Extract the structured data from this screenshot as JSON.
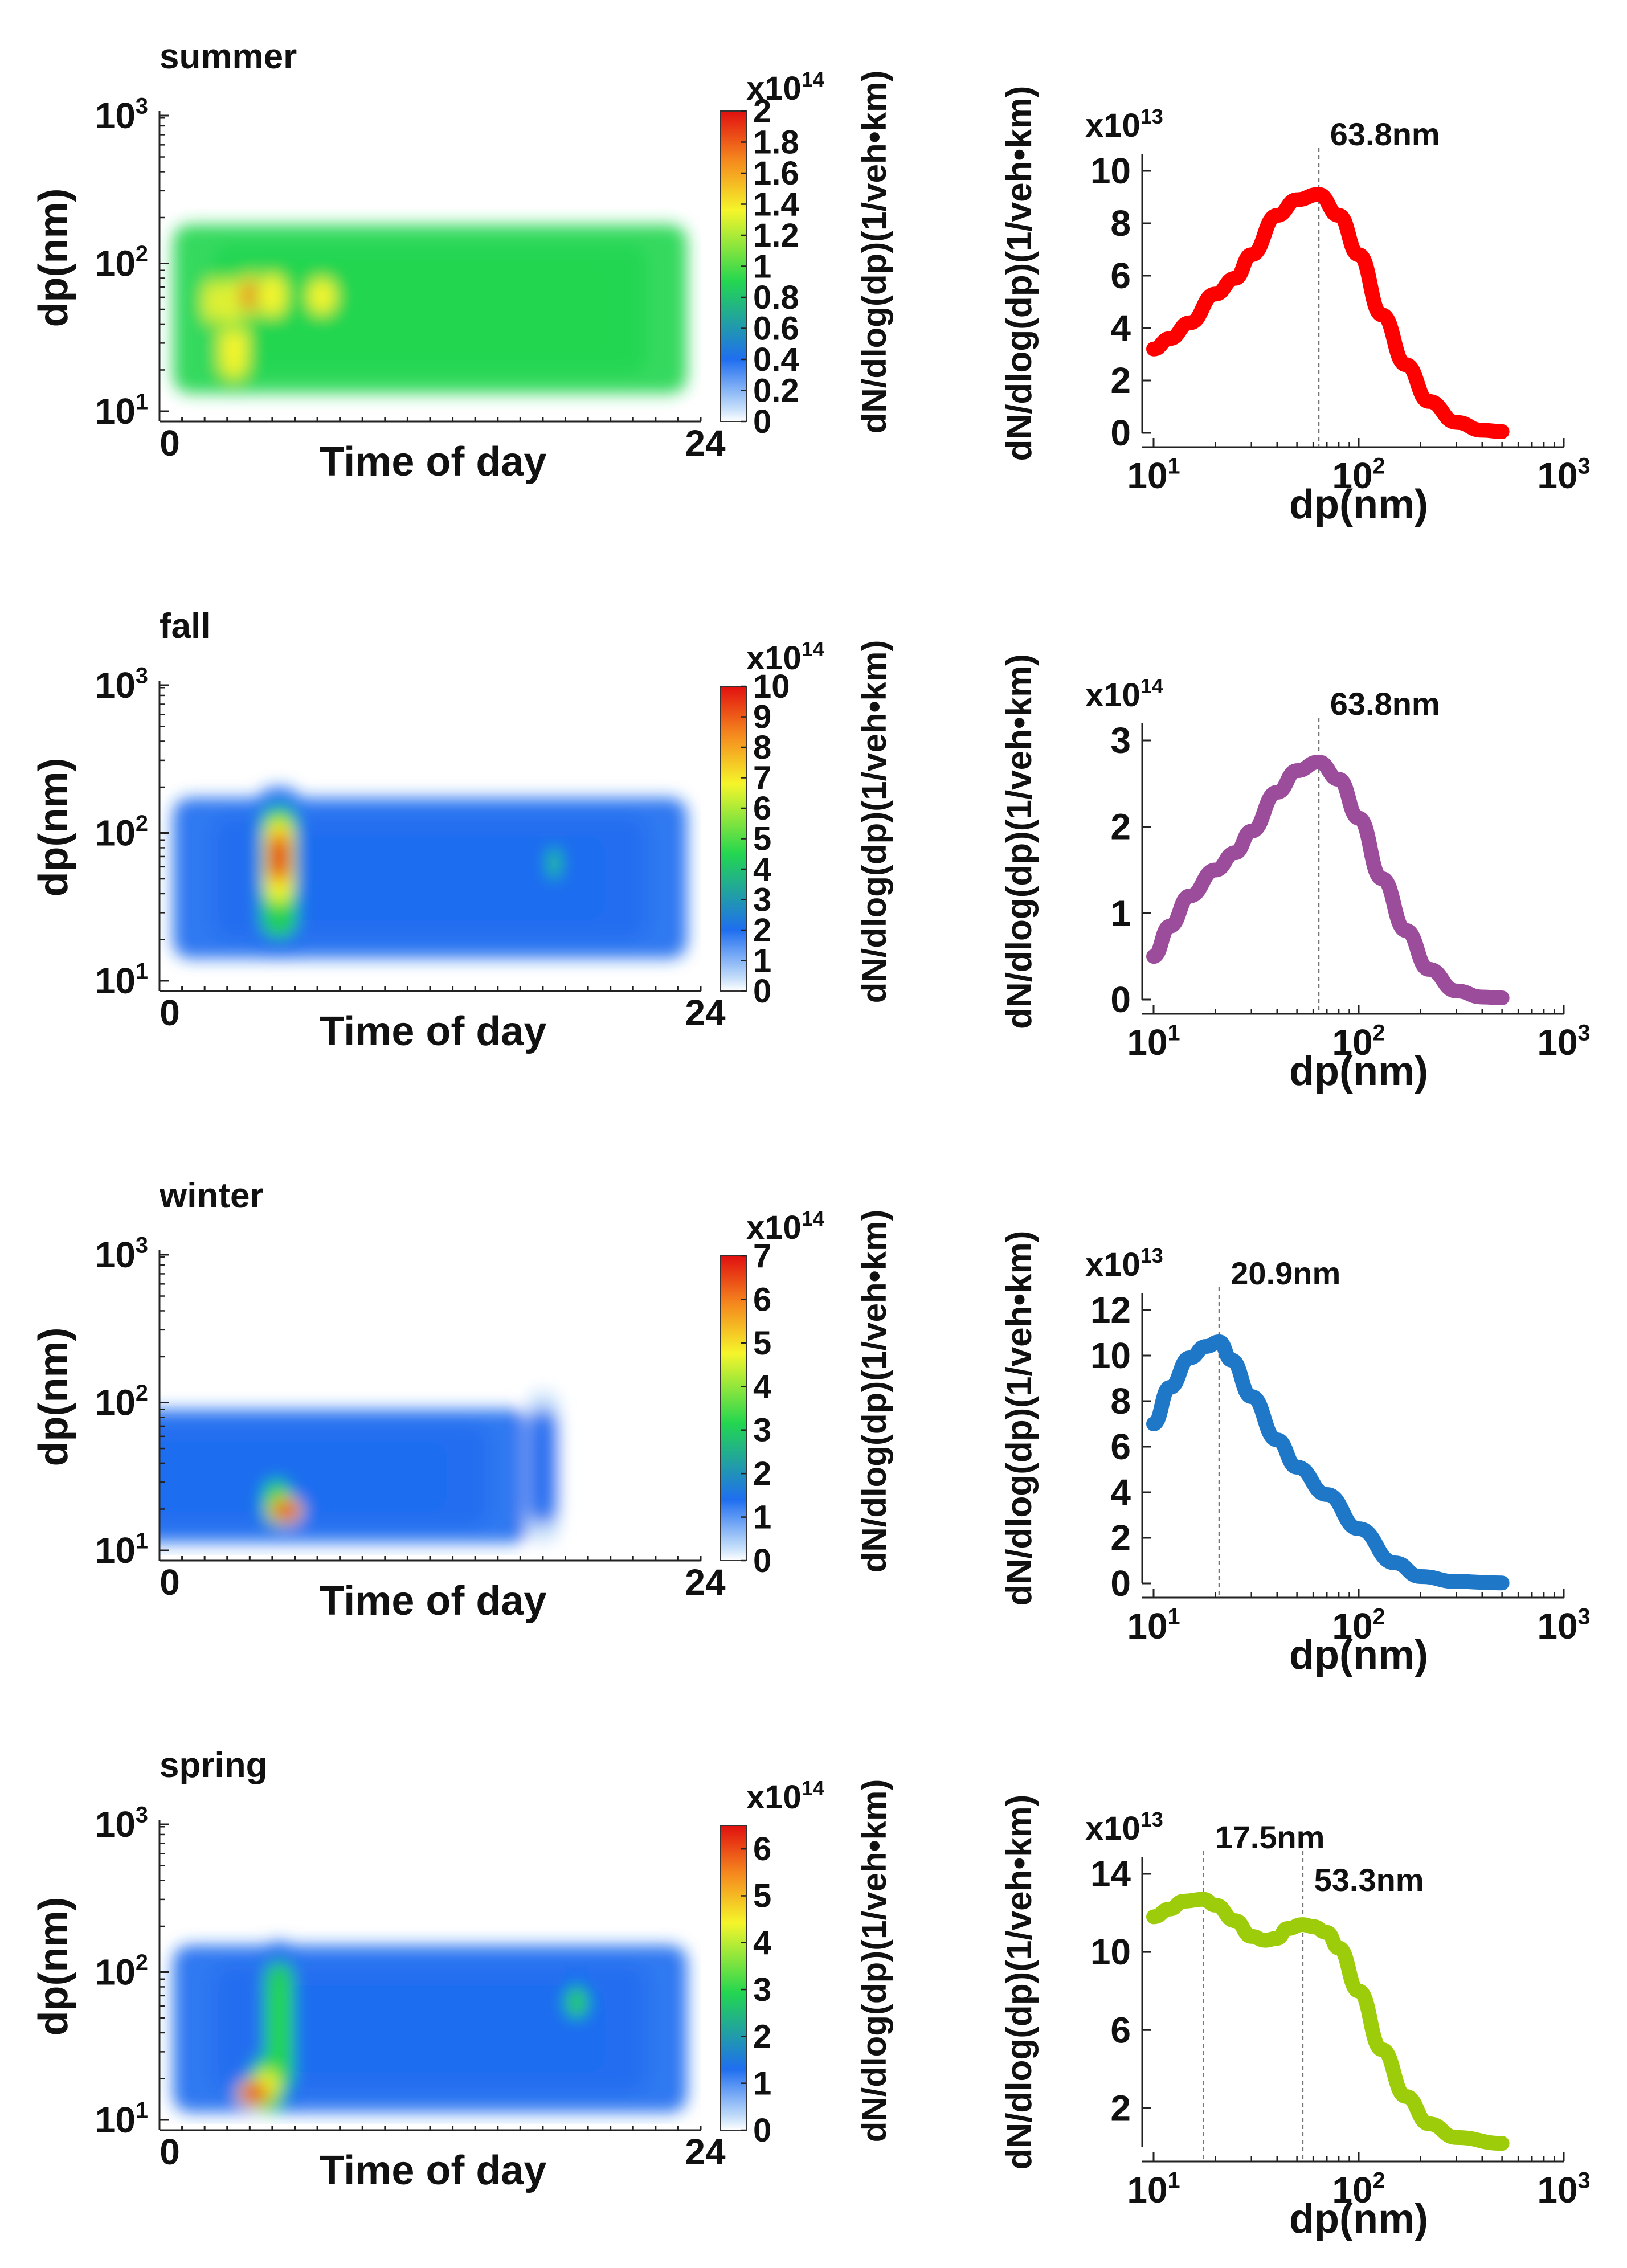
{
  "chart_data": [
    {
      "type": "heatmap",
      "title": "summer",
      "xlabel": "Time of day",
      "ylabel": "dp(nm)",
      "x_ticks": [
        "0",
        "24"
      ],
      "xlim": [
        0,
        24
      ],
      "ylim": [
        10,
        1000
      ],
      "y_ticks": [
        {
          "base": "10",
          "exp": "1"
        },
        {
          "base": "10",
          "exp": "2"
        },
        {
          "base": "10",
          "exp": "3"
        }
      ],
      "colorbar": {
        "label": "dN/dlog(dp)(1/veh•km)",
        "multiplier_base": "x10",
        "multiplier_exp": "14",
        "range": [
          0,
          2
        ],
        "ticks": [
          "0",
          "0.2",
          "0.4",
          "0.6",
          "0.8",
          "1",
          "1.2",
          "1.4",
          "1.6",
          "1.8",
          "2"
        ]
      },
      "color_stops": [
        "#ffffff",
        "#c8e0fa",
        "#1f6ef0",
        "#23d650",
        "#f5f52a",
        "#f58a1e",
        "#e11010"
      ],
      "blobs": [
        {
          "t": 12,
          "d0": 14,
          "d1": 180,
          "v": 0.75
        },
        {
          "t": 2.6,
          "d0": 35,
          "d1": 90,
          "v": 1.25
        },
        {
          "t": 3.3,
          "d0": 14,
          "d1": 80,
          "v": 1.25
        },
        {
          "t": 3.3,
          "d0": 35,
          "d1": 90,
          "v": 1.2
        },
        {
          "t": 4.1,
          "d0": 40,
          "d1": 95,
          "v": 1.55
        },
        {
          "t": 5.0,
          "d0": 40,
          "d1": 95,
          "v": 1.25
        },
        {
          "t": 7.2,
          "d0": 42,
          "d1": 88,
          "v": 1.3
        }
      ]
    },
    {
      "type": "line",
      "title": "",
      "color": "#ff0000",
      "xlabel": "dp(nm)",
      "ylabel": "dN/dlog(dp)(1/veh•km)",
      "multiplier_base": "x10",
      "multiplier_exp": "13",
      "xlim": [
        10,
        1000
      ],
      "ylim": [
        0,
        10
      ],
      "y_ticks": [
        "0",
        "2",
        "4",
        "6",
        "8",
        "10"
      ],
      "x_ticks": [
        {
          "base": "10",
          "exp": "1"
        },
        {
          "base": "10",
          "exp": "2"
        },
        {
          "base": "10",
          "exp": "3"
        }
      ],
      "x": [
        10,
        12,
        15,
        20,
        25,
        30,
        40,
        50,
        63.8,
        80,
        100,
        130,
        170,
        220,
        300,
        400,
        500
      ],
      "y": [
        3.2,
        3.6,
        4.2,
        5.3,
        5.9,
        6.8,
        8.3,
        8.9,
        9.1,
        8.3,
        6.8,
        4.5,
        2.6,
        1.2,
        0.4,
        0.1,
        0.05
      ],
      "peaks": [
        {
          "x": 63.8,
          "label": "63.8nm"
        }
      ]
    },
    {
      "type": "heatmap",
      "title": "fall",
      "xlabel": "Time of day",
      "ylabel": "dp(nm)",
      "x_ticks": [
        "0",
        "24"
      ],
      "xlim": [
        0,
        24
      ],
      "ylim": [
        10,
        1000
      ],
      "y_ticks": [
        {
          "base": "10",
          "exp": "1"
        },
        {
          "base": "10",
          "exp": "2"
        },
        {
          "base": "10",
          "exp": "3"
        }
      ],
      "colorbar": {
        "label": "dN/dlog(dp)(1/veh•km)",
        "multiplier_base": "x10",
        "multiplier_exp": "14",
        "range": [
          0,
          10
        ],
        "ticks": [
          "0",
          "1",
          "2",
          "3",
          "4",
          "5",
          "6",
          "7",
          "8",
          "9",
          "10"
        ]
      },
      "color_stops": [
        "#ffffff",
        "#c8e0fa",
        "#1f6ef0",
        "#23d650",
        "#f5f52a",
        "#f58a1e",
        "#e11010"
      ],
      "blobs": [
        {
          "t": 12,
          "d0": 15,
          "d1": 170,
          "v": 1.7
        },
        {
          "t": 5.3,
          "d0": 15,
          "d1": 200,
          "v": 3.0
        },
        {
          "t": 5.3,
          "d0": 28,
          "d1": 150,
          "v": 6.0
        },
        {
          "t": 5.3,
          "d0": 40,
          "d1": 120,
          "v": 9.0
        },
        {
          "t": 17.5,
          "d0": 40,
          "d1": 100,
          "v": 2.4
        }
      ]
    },
    {
      "type": "line",
      "title": "",
      "color": "#9b4c9b",
      "xlabel": "dp(nm)",
      "ylabel": "dN/dlog(dp)(1/veh•km)",
      "multiplier_base": "x10",
      "multiplier_exp": "14",
      "xlim": [
        10,
        1000
      ],
      "ylim": [
        0,
        3
      ],
      "y_ticks": [
        "0",
        "1",
        "2",
        "3"
      ],
      "x_ticks": [
        {
          "base": "10",
          "exp": "1"
        },
        {
          "base": "10",
          "exp": "2"
        },
        {
          "base": "10",
          "exp": "3"
        }
      ],
      "x": [
        10,
        12,
        15,
        20,
        25,
        30,
        40,
        50,
        63.8,
        80,
        100,
        130,
        170,
        220,
        300,
        400,
        500
      ],
      "y": [
        0.5,
        0.85,
        1.2,
        1.5,
        1.7,
        1.95,
        2.4,
        2.65,
        2.75,
        2.55,
        2.1,
        1.4,
        0.8,
        0.35,
        0.1,
        0.03,
        0.02
      ],
      "peaks": [
        {
          "x": 63.8,
          "label": "63.8nm"
        }
      ]
    },
    {
      "type": "heatmap",
      "title": "winter",
      "xlabel": "Time of day",
      "ylabel": "dp(nm)",
      "x_ticks": [
        "0",
        "24"
      ],
      "xlim": [
        0,
        24
      ],
      "ylim": [
        10,
        1000
      ],
      "y_ticks": [
        {
          "base": "10",
          "exp": "1"
        },
        {
          "base": "10",
          "exp": "2"
        },
        {
          "base": "10",
          "exp": "3"
        }
      ],
      "colorbar": {
        "label": "dN/dlog(dp)(1/veh•km)",
        "multiplier_base": "x10",
        "multiplier_exp": "14",
        "range": [
          0,
          7
        ],
        "ticks": [
          "0",
          "1",
          "2",
          "3",
          "4",
          "5",
          "6",
          "7"
        ]
      },
      "color_stops": [
        "#ffffff",
        "#c8e0fa",
        "#1f6ef0",
        "#23d650",
        "#f5f52a",
        "#f58a1e",
        "#e11010"
      ],
      "blobs": [
        {
          "t": 5,
          "d0": 12,
          "d1": 90,
          "v": 1.2
        },
        {
          "t": 17,
          "d0": 12,
          "d1": 120,
          "v": 0.45
        },
        {
          "t": 5.2,
          "d0": 14,
          "d1": 35,
          "v": 2.5
        },
        {
          "t": 5.6,
          "d0": 16,
          "d1": 24,
          "v": 6.2
        }
      ]
    },
    {
      "type": "line",
      "title": "",
      "color": "#1f77c8",
      "xlabel": "dp(nm)",
      "ylabel": "dN/dlog(dp)(1/veh•km)",
      "multiplier_base": "x10",
      "multiplier_exp": "13",
      "xlim": [
        10,
        1000
      ],
      "ylim": [
        0,
        12
      ],
      "y_ticks": [
        "0",
        "2",
        "4",
        "6",
        "8",
        "10",
        "12"
      ],
      "x_ticks": [
        {
          "base": "10",
          "exp": "1"
        },
        {
          "base": "10",
          "exp": "2"
        },
        {
          "base": "10",
          "exp": "3"
        }
      ],
      "x": [
        10,
        12,
        15,
        18,
        20.9,
        24,
        30,
        40,
        50,
        70,
        100,
        150,
        200,
        300,
        500
      ],
      "y": [
        7,
        8.6,
        9.9,
        10.4,
        10.6,
        9.8,
        8.2,
        6.3,
        5.1,
        3.9,
        2.4,
        0.9,
        0.3,
        0.08,
        0.02
      ],
      "peaks": [
        {
          "x": 20.9,
          "label": "20.9nm"
        }
      ]
    },
    {
      "type": "heatmap",
      "title": "spring",
      "xlabel": "Time of day",
      "ylabel": "dp(nm)",
      "x_ticks": [
        "0",
        "24"
      ],
      "xlim": [
        0,
        24
      ],
      "ylim": [
        10,
        1000
      ],
      "y_ticks": [
        {
          "base": "10",
          "exp": "1"
        },
        {
          "base": "10",
          "exp": "2"
        },
        {
          "base": "10",
          "exp": "3"
        }
      ],
      "colorbar": {
        "label": "dN/dlog(dp)(1/veh•km)",
        "multiplier_base": "x10",
        "multiplier_exp": "14",
        "range": [
          0,
          6.5
        ],
        "ticks": [
          "0",
          "1",
          "2",
          "3",
          "4",
          "5",
          "6"
        ]
      },
      "color_stops": [
        "#ffffff",
        "#c8e0fa",
        "#1f6ef0",
        "#23d650",
        "#f5f52a",
        "#f58a1e",
        "#e11010"
      ],
      "blobs": [
        {
          "t": 12,
          "d0": 12,
          "d1": 150,
          "v": 0.95
        },
        {
          "t": 5.3,
          "d0": 12,
          "d1": 160,
          "v": 2.3
        },
        {
          "t": 4.8,
          "d0": 12,
          "d1": 28,
          "v": 3.5
        },
        {
          "t": 4.2,
          "d0": 13,
          "d1": 20,
          "v": 6.0
        },
        {
          "t": 18.5,
          "d0": 40,
          "d1": 100,
          "v": 1.6
        }
      ]
    },
    {
      "type": "line",
      "title": "",
      "color": "#9ccc0a",
      "xlabel": "dp(nm)",
      "ylabel": "dN/dlog(dp)(1/veh•km)",
      "multiplier_base": "x10",
      "multiplier_exp": "13",
      "xlim": [
        10,
        1000
      ],
      "ylim": [
        0,
        14
      ],
      "y_ticks": [
        "2",
        "6",
        "10",
        "14"
      ],
      "x_ticks": [
        {
          "base": "10",
          "exp": "1"
        },
        {
          "base": "10",
          "exp": "2"
        },
        {
          "base": "10",
          "exp": "3"
        }
      ],
      "x": [
        10,
        12,
        14,
        17.5,
        20,
        25,
        30,
        35,
        40,
        45,
        53.3,
        60,
        70,
        80,
        100,
        130,
        170,
        220,
        300,
        500
      ],
      "y": [
        11.8,
        12.2,
        12.6,
        12.7,
        12.4,
        11.6,
        10.8,
        10.6,
        10.7,
        11.2,
        11.4,
        11.3,
        11.0,
        10.2,
        8.0,
        5.0,
        2.6,
        1.2,
        0.5,
        0.2
      ],
      "peaks": [
        {
          "x": 17.5,
          "label": "17.5nm"
        },
        {
          "x": 53.3,
          "label": "53.3nm"
        }
      ]
    }
  ]
}
